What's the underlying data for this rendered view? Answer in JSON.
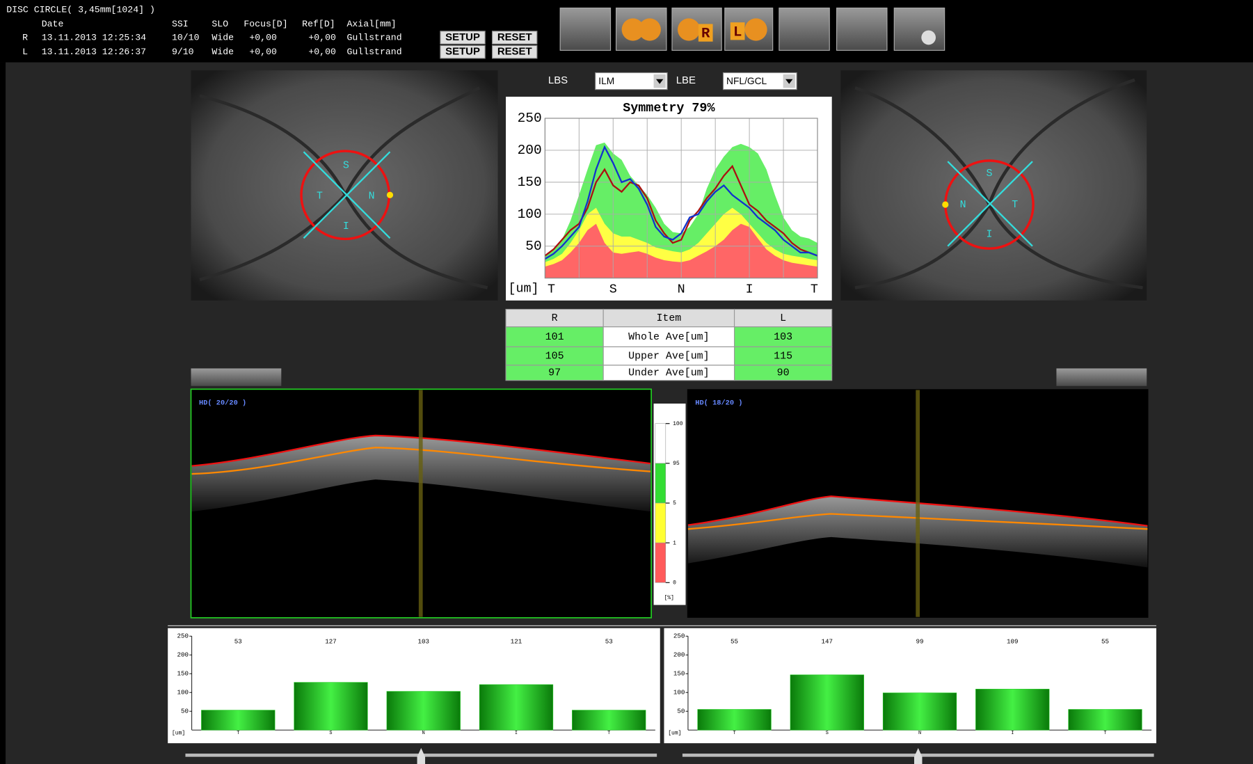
{
  "header": {
    "title": "DISC CIRCLE( 3,45mm[1024] )",
    "columns": [
      "Date",
      "SSI",
      "SLO",
      "Focus[D]",
      "Ref[D]",
      "Axial[mm]"
    ],
    "rows": [
      [
        "R",
        "13.11.2013 12:25:34",
        "10/10",
        "Wide",
        "+0,00",
        "+0,00",
        "Gullstrand"
      ],
      [
        "L",
        "13.11.2013 12:26:37",
        "9/10",
        "Wide",
        "+0,00",
        "+0,00",
        "Gullstrand"
      ]
    ],
    "buttons": [
      "SETUP",
      "RESET"
    ]
  },
  "toolbar": [
    "R",
    "L"
  ],
  "boundaries": {
    "lbs_label": "LBS",
    "lbs_value": "ILM",
    "lbe_label": "LBE",
    "lbe_value": "NFL/GCL"
  },
  "fundus": [
    {
      "labels": [
        "S",
        "T",
        "N",
        "I"
      ]
    },
    {
      "labels": [
        "S",
        "N",
        "T",
        "I"
      ]
    }
  ],
  "table": {
    "header": [
      "R",
      "Item",
      "L"
    ],
    "rows": [
      [
        101,
        "Whole Ave[um]",
        103
      ],
      [
        105,
        "Upper Ave[um]",
        115
      ],
      [
        97,
        "Under Ave[um]",
        90
      ]
    ]
  },
  "bscans": [
    {
      "label": "HD( 20/20 )"
    },
    {
      "label": "HD( 18/20 )"
    }
  ],
  "color_scale": {
    "ticks": [
      100,
      95,
      5,
      1,
      0
    ],
    "unit": "[%]",
    "colors": [
      "#ffffff",
      "#33dd33",
      "#ffff33",
      "#ff5a5a"
    ]
  },
  "chart_data": [
    {
      "type": "line",
      "title": "Symmetry 79%",
      "ylabel": "[um]",
      "categories": [
        "T",
        null,
        null,
        null,
        null,
        null,
        null,
        null,
        "S",
        null,
        null,
        null,
        null,
        null,
        null,
        null,
        "N",
        null,
        null,
        null,
        null,
        null,
        null,
        null,
        "I",
        null,
        null,
        null,
        null,
        null,
        null,
        null,
        "T"
      ],
      "ylim": [
        0,
        250
      ],
      "yticks": [
        50,
        100,
        150,
        200,
        250
      ],
      "grid": true,
      "series": [
        {
          "style": "area",
          "color": "#66ee66",
          "values": [
            35,
            45,
            60,
            90,
            130,
            170,
            208,
            212,
            195,
            185,
            160,
            145,
            130,
            110,
            85,
            72,
            70,
            80,
            100,
            140,
            170,
            190,
            205,
            210,
            205,
            195,
            170,
            130,
            95,
            75,
            65,
            62,
            55
          ]
        },
        {
          "style": "area",
          "color": "#ffff44",
          "values": [
            25,
            30,
            38,
            55,
            75,
            100,
            110,
            85,
            70,
            65,
            65,
            60,
            55,
            48,
            45,
            42,
            40,
            45,
            55,
            70,
            85,
            100,
            110,
            100,
            85,
            70,
            55,
            45,
            38,
            35,
            33,
            30,
            28
          ]
        },
        {
          "style": "area",
          "color": "#ff6666",
          "values": [
            18,
            22,
            28,
            40,
            55,
            75,
            85,
            55,
            40,
            38,
            40,
            42,
            38,
            32,
            28,
            26,
            25,
            28,
            35,
            42,
            50,
            60,
            75,
            85,
            80,
            62,
            45,
            35,
            28,
            24,
            22,
            20,
            18
          ]
        },
        {
          "style": "line",
          "color": "#aa1111",
          "values": [
            35,
            45,
            60,
            75,
            85,
            110,
            150,
            170,
            145,
            135,
            150,
            145,
            125,
            90,
            70,
            55,
            60,
            90,
            105,
            125,
            140,
            160,
            175,
            145,
            115,
            105,
            90,
            80,
            70,
            55,
            45,
            40,
            35
          ]
        },
        {
          "style": "line",
          "color": "#1133cc",
          "values": [
            30,
            38,
            50,
            65,
            80,
            120,
            170,
            205,
            180,
            150,
            155,
            140,
            115,
            80,
            65,
            60,
            70,
            95,
            100,
            120,
            135,
            145,
            130,
            120,
            110,
            95,
            85,
            75,
            60,
            50,
            40,
            40,
            35
          ]
        }
      ]
    },
    {
      "type": "bar",
      "ylabel": "[um]",
      "categories": [
        "T",
        "S",
        "N",
        "I",
        "T"
      ],
      "values": [
        53,
        127,
        103,
        121,
        53
      ],
      "color": "#22cc22",
      "ylim": [
        0,
        250
      ],
      "yticks": [
        50,
        100,
        150,
        200,
        250
      ]
    },
    {
      "type": "bar",
      "ylabel": "[um]",
      "categories": [
        "T",
        "S",
        "N",
        "I",
        "T"
      ],
      "values": [
        55,
        147,
        99,
        109,
        55
      ],
      "color": "#22cc22",
      "ylim": [
        0,
        250
      ],
      "yticks": [
        50,
        100,
        150,
        200,
        250
      ]
    }
  ]
}
